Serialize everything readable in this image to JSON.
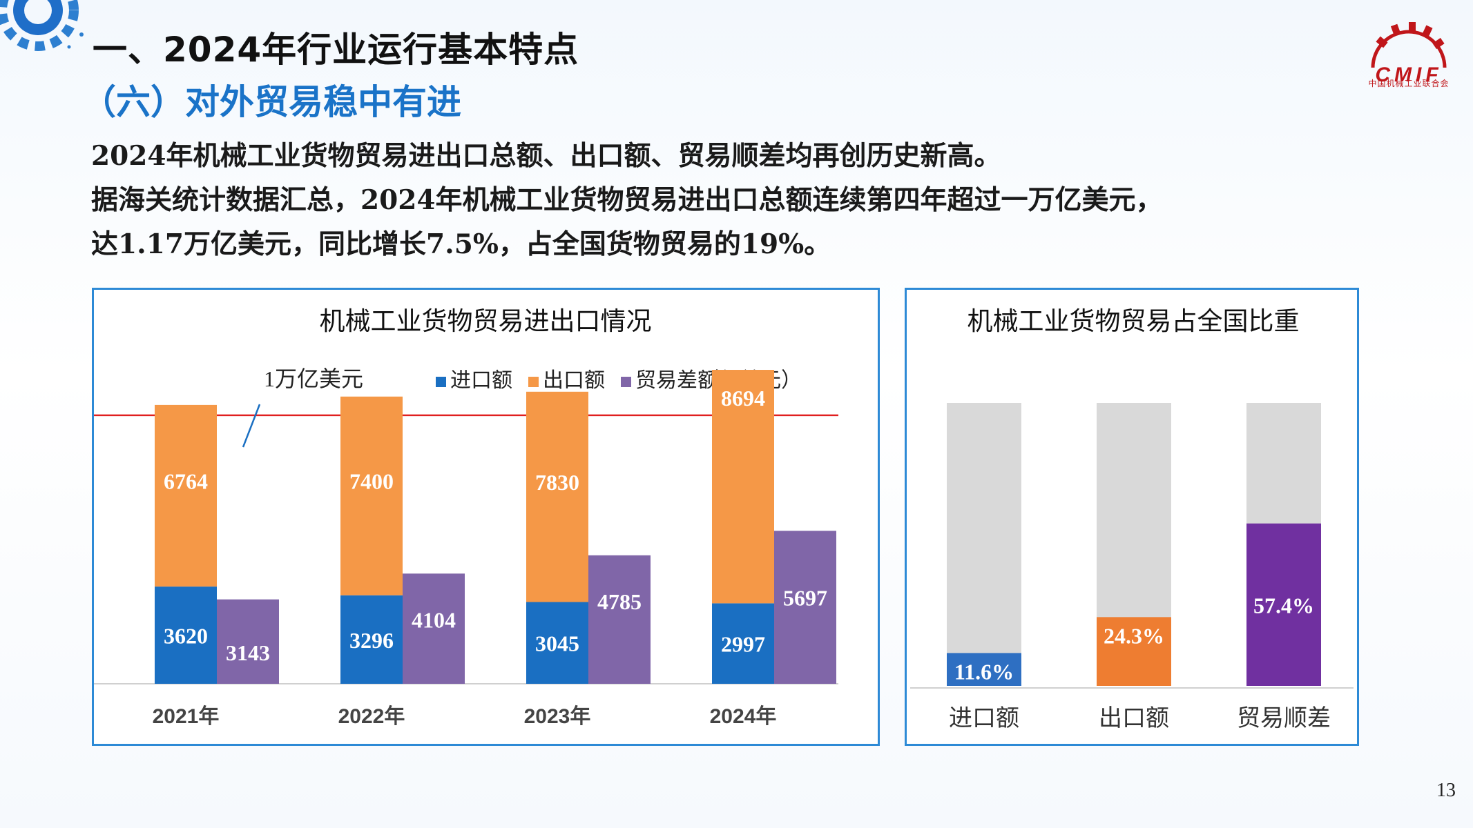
{
  "header": {
    "title": "一、2024年行业运行基本特点",
    "subtitle": "（六）对外贸易稳中有进"
  },
  "logo": {
    "text": "CMIF",
    "caption": "中国机械工业联合会"
  },
  "paragraph": {
    "line1": "2024年机械工业货物贸易进出口总额、出口额、贸易顺差均再创历史新高。",
    "line2": "据海关统计数据汇总，2024年机械工业货物贸易进出口总额连续第四年超过一万亿美元，",
    "line3": "达1.17万亿美元，同比增长7.5%，占全国货物贸易的19%。"
  },
  "page_number": "13",
  "colors": {
    "import": "#1a6fc2",
    "export": "#f59847",
    "balance": "#8066a8",
    "threshold_line": "#e02020",
    "share_bg": "#d9d9d9",
    "share_import": "#2e6fc2",
    "share_export": "#ee7d31",
    "share_balance": "#7030a0",
    "accent_blue": "#1a73c8",
    "panel_border": "#2d8ad6"
  },
  "chart_data": [
    {
      "type": "bar",
      "title": "机械工业货物贸易进出口情况",
      "unit_label": "（亿美元）",
      "categories": [
        "2021年",
        "2022年",
        "2023年",
        "2024年"
      ],
      "series": [
        {
          "name": "进口额",
          "values": [
            3620,
            3296,
            3045,
            2997
          ],
          "stack": "trade",
          "color": "#1a6fc2"
        },
        {
          "name": "出口额",
          "values": [
            6764,
            7400,
            7830,
            8694
          ],
          "stack": "trade",
          "color": "#f59847"
        },
        {
          "name": "贸易差额",
          "values": [
            3143,
            4104,
            4785,
            5697
          ],
          "stack": "balance",
          "color": "#8066a8"
        }
      ],
      "reference_line": {
        "value": 10000,
        "label": "1万亿美元"
      },
      "ylim": [
        0,
        12000
      ],
      "legend": "top"
    },
    {
      "type": "bar",
      "title": "机械工业货物贸易占全国比重",
      "categories": [
        "进口额",
        "出口额",
        "贸易顺差"
      ],
      "values": [
        11.6,
        24.3,
        57.4
      ],
      "labels": [
        "11.6%",
        "24.3%",
        "57.4%"
      ],
      "ylim": [
        0,
        100
      ]
    }
  ]
}
